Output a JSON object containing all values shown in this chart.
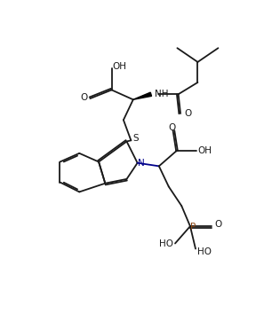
{
  "bg_color": "#ffffff",
  "line_color": "#1a1a1a",
  "n_color": "#00008B",
  "p_color": "#8B4513",
  "lw": 1.3,
  "dbo": 0.07,
  "fig_width": 2.97,
  "fig_height": 3.71,
  "dpi": 100,
  "xlim": [
    0,
    9.5
  ],
  "ylim": [
    0,
    11.8
  ]
}
